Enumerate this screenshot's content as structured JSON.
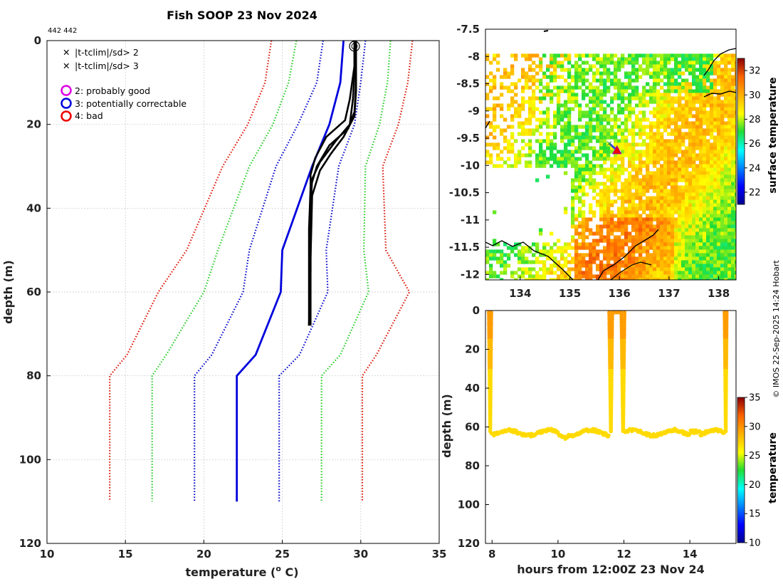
{
  "figure": {
    "title": "Fish SOOP 23 Nov 2024",
    "id_label": "442 442",
    "credit": "© IMOS 22-Sep-2025 14:24 Hobart"
  },
  "colors": {
    "qc_flag_2": "#e000e0",
    "qc_flag_3": "#0000dd",
    "qc_flag_4": "#ee0000",
    "clim_3sd": "#dd1100",
    "clim_2sd": "#22cc22",
    "clim_1sd": "#0000cc",
    "mean": "#0000dd",
    "profile": "#000000"
  },
  "legend": {
    "items": [
      {
        "marker": "x",
        "color": "#22cc22",
        "label": "|t-tclim|/sd> 2"
      },
      {
        "marker": "x",
        "color": "#ee0000",
        "label": "|t-tclim|/sd> 3"
      },
      {
        "marker": "o",
        "color": "#e000e0",
        "label": "2: probably good"
      },
      {
        "marker": "o",
        "color": "#0000dd",
        "label": "3: potentially correctable"
      },
      {
        "marker": "o",
        "color": "#ee0000",
        "label": "4: bad"
      }
    ]
  },
  "chart_data": [
    {
      "name": "profile",
      "type": "line",
      "title": "Fish SOOP 23 Nov 2024",
      "xlabel": "temperature (",
      "xlabel_sup": "o",
      "xlabel_tail": " C)",
      "ylabel": "depth (m)",
      "xlim": [
        10,
        35
      ],
      "ylim": [
        0,
        120
      ],
      "y_reversed": true,
      "xticks": [
        10,
        15,
        20,
        25,
        30,
        35
      ],
      "yticks": [
        0,
        20,
        40,
        60,
        80,
        100,
        120
      ],
      "grid": true,
      "depths": [
        0,
        10,
        20,
        30,
        50,
        60,
        75,
        80,
        110
      ],
      "series": [
        {
          "name": "climatology -3sd",
          "style": "dotted",
          "color": "#dd1100",
          "values": [
            24.3,
            23.9,
            22.8,
            21.2,
            18.9,
            17.1,
            15.1,
            14.0,
            14.0
          ]
        },
        {
          "name": "climatology -2sd",
          "style": "dotted",
          "color": "#22cc22",
          "values": [
            25.9,
            25.4,
            24.4,
            22.9,
            20.9,
            20.0,
            17.6,
            16.7,
            16.7
          ]
        },
        {
          "name": "climatology -1sd",
          "style": "dotted",
          "color": "#0000cc",
          "values": [
            27.6,
            27.2,
            26.0,
            24.6,
            22.9,
            22.5,
            20.5,
            19.4,
            19.4
          ]
        },
        {
          "name": "climatology mean",
          "style": "solid",
          "color": "#0000dd",
          "values": [
            28.9,
            28.7,
            28.0,
            26.9,
            25.0,
            24.9,
            23.3,
            22.1,
            22.1
          ]
        },
        {
          "name": "climatology +1sd",
          "style": "dotted",
          "color": "#0000cc",
          "values": [
            30.3,
            30.0,
            29.6,
            28.6,
            27.8,
            27.9,
            26.1,
            24.8,
            24.8
          ]
        },
        {
          "name": "climatology +2sd",
          "style": "dotted",
          "color": "#22cc22",
          "values": [
            31.9,
            31.7,
            31.2,
            30.3,
            30.2,
            30.5,
            28.7,
            27.5,
            27.5
          ]
        },
        {
          "name": "climatology +3sd",
          "style": "dotted",
          "color": "#dd1100",
          "values": [
            33.3,
            33.0,
            32.4,
            31.4,
            31.6,
            33.1,
            31.0,
            30.1,
            30.1
          ]
        }
      ],
      "profiles": [
        {
          "name": "cast 1",
          "points": [
            [
              29.6,
              0
            ],
            [
              29.6,
              8
            ],
            [
              29.5,
              14
            ],
            [
              29.3,
              20
            ],
            [
              28.4,
              24
            ],
            [
              27.4,
              29
            ],
            [
              26.9,
              33
            ],
            [
              26.8,
              40
            ],
            [
              26.8,
              55
            ],
            [
              26.7,
              68
            ]
          ]
        },
        {
          "name": "cast 2",
          "points": [
            [
              29.7,
              0
            ],
            [
              29.7,
              10
            ],
            [
              29.6,
              17
            ],
            [
              29.2,
              21
            ],
            [
              28.0,
              25
            ],
            [
              27.2,
              30
            ],
            [
              26.8,
              35
            ],
            [
              26.7,
              45
            ],
            [
              26.7,
              60
            ],
            [
              26.7,
              68
            ]
          ]
        },
        {
          "name": "cast 3",
          "points": [
            [
              29.6,
              0
            ],
            [
              29.6,
              6
            ],
            [
              29.3,
              14
            ],
            [
              29.0,
              19
            ],
            [
              27.8,
              23
            ],
            [
              27.1,
              28
            ],
            [
              26.8,
              32
            ],
            [
              26.8,
              48
            ],
            [
              26.7,
              68
            ]
          ]
        },
        {
          "name": "cast 4",
          "points": [
            [
              29.7,
              0
            ],
            [
              29.7,
              12
            ],
            [
              29.6,
              18
            ],
            [
              28.9,
              23
            ],
            [
              28.1,
              27
            ],
            [
              27.4,
              31
            ],
            [
              26.9,
              37
            ],
            [
              26.8,
              52
            ],
            [
              26.8,
              68
            ]
          ]
        }
      ],
      "surface_marker": {
        "temp": 29.6,
        "depth": 1
      }
    },
    {
      "name": "map",
      "type": "heatmap",
      "colorbar_label": "surface temperature",
      "colorbar_range": [
        21,
        33
      ],
      "colorbar_ticks": [
        22,
        24,
        26,
        28,
        30,
        32
      ],
      "xlim": [
        133.3,
        138.35
      ],
      "ylim": [
        -12.1,
        -7.5
      ],
      "xticks": [
        134,
        135,
        136,
        137,
        138
      ],
      "yticks": [
        "-7.5",
        "-8",
        "-8.5",
        "-9",
        "-9.5",
        "-10",
        "-10.5",
        "-11",
        "-11.5",
        "-12"
      ],
      "data_lat_range": [
        -12.1,
        -7.95
      ],
      "track": [
        [
          135.8,
          -9.6
        ],
        [
          135.95,
          -9.72
        ]
      ]
    },
    {
      "name": "time_depth",
      "type": "scatter",
      "xlabel": "hours from 12:00Z 23 Nov 24",
      "ylabel": "depth (m)",
      "colorbar_label": "temperature",
      "colorbar_range": [
        10,
        35
      ],
      "colorbar_ticks": [
        10,
        15,
        20,
        25,
        30,
        35
      ],
      "xlim": [
        7.8,
        15.4
      ],
      "ylim": [
        0,
        120
      ],
      "y_reversed": true,
      "xticks": [
        8,
        10,
        12,
        14
      ],
      "yticks": [
        0,
        20,
        40,
        60,
        80,
        100,
        120
      ],
      "dives": [
        [
          7.9,
          7.98
        ],
        [
          11.55,
          11.65
        ],
        [
          11.92,
          12.02
        ],
        [
          15.05,
          15.12
        ]
      ],
      "bottom_depth": 63
    }
  ]
}
